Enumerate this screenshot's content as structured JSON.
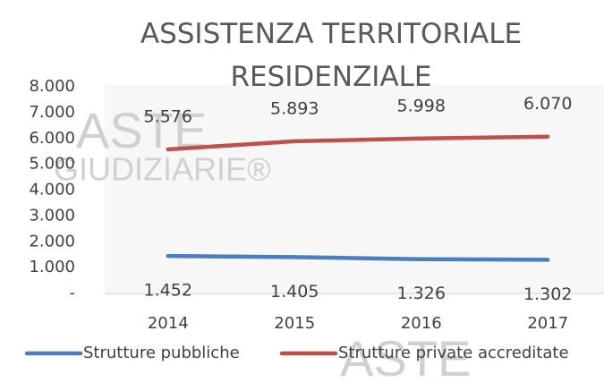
{
  "watermarks": [
    "ASTE",
    "GIUDIZIARIE®",
    "ASTE"
  ],
  "chart_data": {
    "type": "line",
    "title": "ASSISTENZA TERRITORIALE RESIDENZIALE",
    "categories": [
      "2014",
      "2015",
      "2016",
      "2017"
    ],
    "series": [
      {
        "name": "Strutture pubbliche",
        "color": "#4a7ebf",
        "values": [
          1452,
          1405,
          1326,
          1302
        ],
        "value_labels": [
          "1.452",
          "1.405",
          "1.326",
          "1.302"
        ]
      },
      {
        "name": "Strutture private accreditate",
        "color": "#c0504d",
        "values": [
          5576,
          5893,
          5998,
          6070
        ],
        "value_labels": [
          "5.576",
          "5.893",
          "5.998",
          "6.070"
        ]
      }
    ],
    "ylim": [
      0,
      8000
    ],
    "yticks": [
      {
        "value": 0,
        "label": "-"
      },
      {
        "value": 1000,
        "label": "1.000"
      },
      {
        "value": 2000,
        "label": "2.000"
      },
      {
        "value": 3000,
        "label": "3.000"
      },
      {
        "value": 4000,
        "label": "4.000"
      },
      {
        "value": 5000,
        "label": "5.000"
      },
      {
        "value": 6000,
        "label": "6.000"
      },
      {
        "value": 7000,
        "label": "7.000"
      },
      {
        "value": 8000,
        "label": "8.000"
      }
    ],
    "grid": false,
    "legend": "bottom"
  }
}
